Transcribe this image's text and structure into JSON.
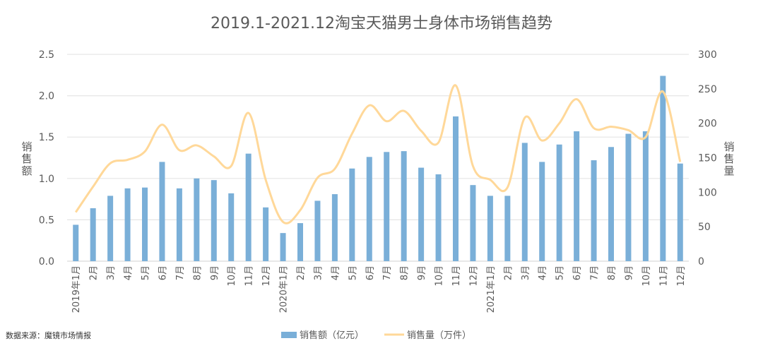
{
  "chart_data": {
    "type": "bar+line",
    "title": "2019.1-2021.12淘宝天猫男士身体市场销售趋势",
    "ylabel_left": "销售额",
    "ylabel_right": "销售量",
    "ylim_left": [
      0,
      2.5
    ],
    "ylim_right": [
      0,
      300
    ],
    "yticks_left": [
      "0.0",
      "0.5",
      "1.0",
      "1.5",
      "2.0",
      "2.5"
    ],
    "yticks_right": [
      "0",
      "50",
      "100",
      "150",
      "200",
      "250",
      "300"
    ],
    "grid": true,
    "legend_position": "bottom",
    "categories": [
      "2019年1月",
      "2月",
      "3月",
      "4月",
      "5月",
      "6月",
      "7月",
      "8月",
      "9月",
      "10月",
      "11月",
      "12月",
      "2020年1月",
      "2月",
      "3月",
      "4月",
      "5月",
      "6月",
      "7月",
      "8月",
      "9月",
      "10月",
      "11月",
      "12月",
      "2021年1月",
      "2月",
      "3月",
      "4月",
      "5月",
      "6月",
      "7月",
      "8月",
      "9月",
      "10月",
      "11月",
      "12月"
    ],
    "series": [
      {
        "name": "销售额（亿元）",
        "type": "bar",
        "axis": "left",
        "color": "#7aafd8",
        "values": [
          0.44,
          0.64,
          0.79,
          0.88,
          0.89,
          1.2,
          0.88,
          1.0,
          0.98,
          0.82,
          1.3,
          0.65,
          0.34,
          0.46,
          0.73,
          0.81,
          1.12,
          1.26,
          1.32,
          1.33,
          1.13,
          1.05,
          1.75,
          0.92,
          0.79,
          0.79,
          1.43,
          1.2,
          1.41,
          1.57,
          1.22,
          1.38,
          1.54,
          1.57,
          2.24,
          1.18
        ]
      },
      {
        "name": "销售量（万件）",
        "type": "line",
        "axis": "right",
        "color": "#ffd899",
        "values": [
          71,
          108,
          142,
          147,
          159,
          198,
          161,
          168,
          152,
          138,
          215,
          118,
          57,
          74,
          121,
          134,
          185,
          226,
          203,
          218,
          189,
          172,
          255,
          138,
          118,
          107,
          208,
          175,
          200,
          235,
          193,
          195,
          190,
          180,
          246,
          144
        ]
      }
    ]
  },
  "source": "数据来源：魔镜市场情报"
}
